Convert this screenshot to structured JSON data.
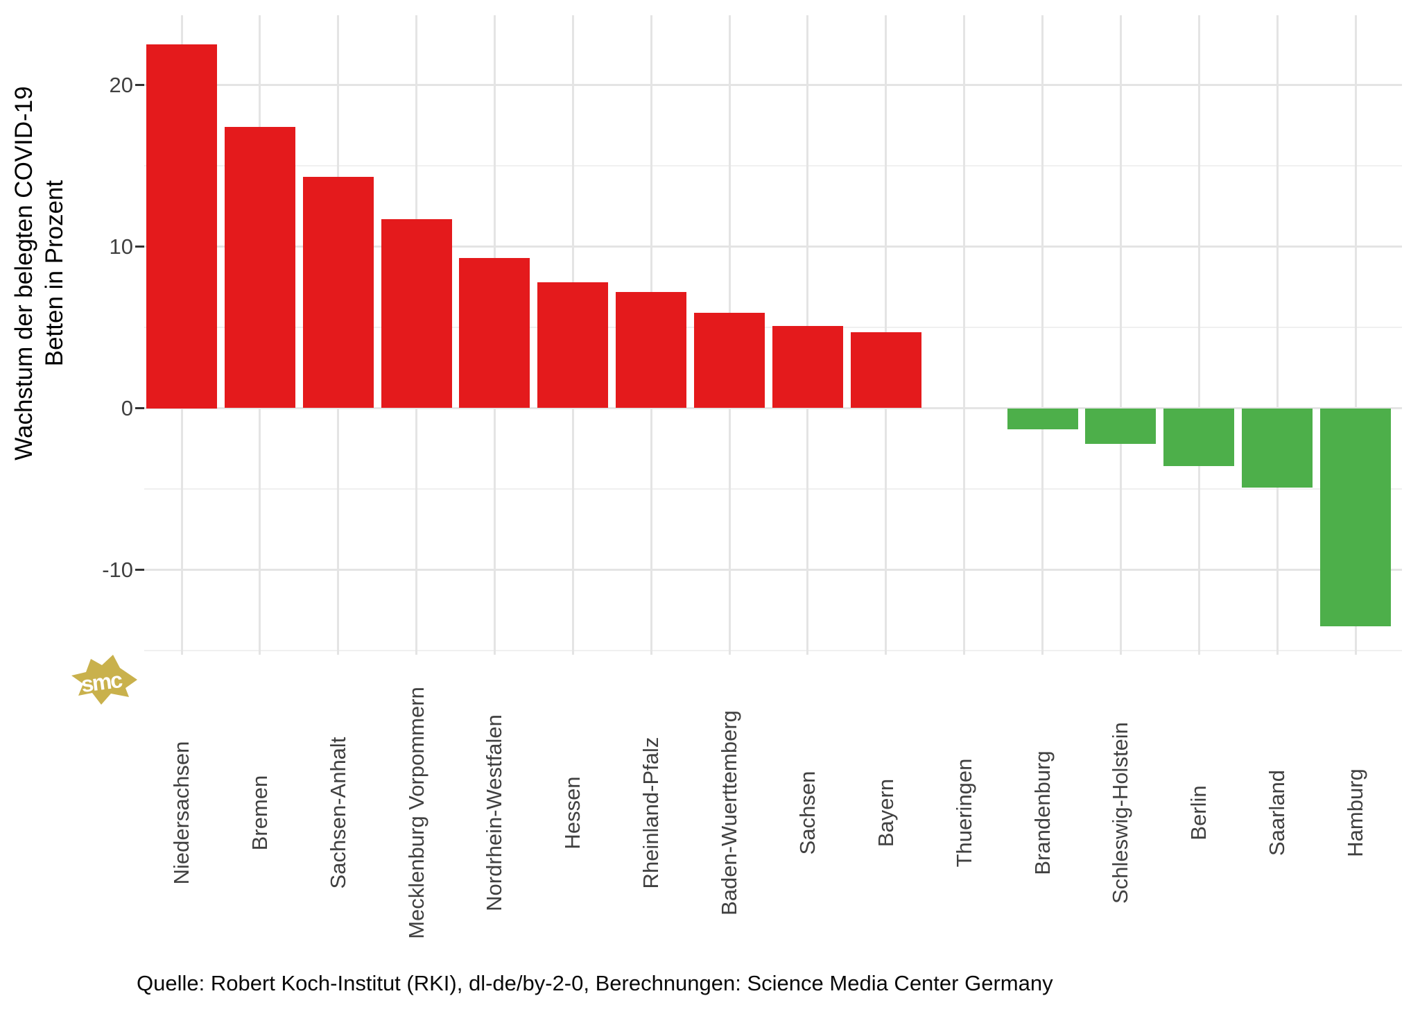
{
  "page": {
    "background": "#ffffff"
  },
  "y_axis": {
    "title_lines": [
      "Wachstum der belegten COVID-19",
      "Betten in Prozent"
    ],
    "tick_labels": [
      "20",
      "10",
      "0",
      "-10"
    ]
  },
  "caption": {
    "text": "Quelle: Robert Koch-Institut (RKI), dl-de/by-2-0, Berechnungen: Science Media Center Germany"
  },
  "logo": {
    "text": "smc",
    "color": "#c9b14c",
    "text_color": "#ffffff"
  },
  "chart_data": {
    "type": "bar",
    "title": "",
    "xlabel": "",
    "ylabel": "Wachstum der belegten COVID-19 Betten in Prozent",
    "categories": [
      "Niedersachsen",
      "Bremen",
      "Sachsen-Anhalt",
      "Mecklenburg Vorpommern",
      "Nordrhein-Westfalen",
      "Hessen",
      "Rheinland-Pfalz",
      "Baden-Wuerttemberg",
      "Sachsen",
      "Bayern",
      "Thueringen",
      "Brandenburg",
      "Schleswig-Holstein",
      "Berlin",
      "Saarland",
      "Hamburg"
    ],
    "values": [
      22.5,
      17.4,
      14.3,
      11.7,
      9.3,
      7.8,
      7.2,
      5.9,
      5.1,
      4.7,
      0,
      -1.3,
      -2.2,
      -3.6,
      -4.9,
      -13.5
    ],
    "ylim": [
      -15.8,
      24.3
    ],
    "yticks_major": [
      20,
      10,
      0,
      -10
    ],
    "yticks_minor": [
      15,
      5,
      -5,
      -15
    ],
    "grid": "on",
    "legend": "none",
    "positive_color": "#e41a1c",
    "negative_color": "#4daf4a"
  }
}
